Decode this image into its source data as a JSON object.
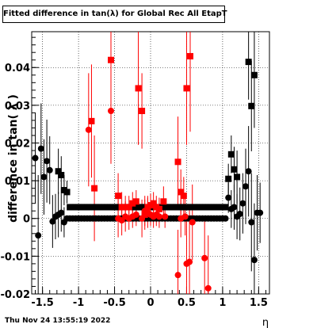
{
  "title": "Fitted difference in tan(λ) for Global Rec All EtapT",
  "footer": "Thu Nov 24 13:55:19 2022",
  "chart_data": {
    "type": "scatter",
    "title": "Fitted difference in tan(λ) for Global Rec All EtapT",
    "xlabel": "η",
    "ylabel": "difference in tan( λ )",
    "xlim": [
      -1.65,
      1.65
    ],
    "ylim": [
      -0.02,
      0.0495
    ],
    "grid": true,
    "x_ticks": [
      -1.5,
      -1,
      -0.5,
      0,
      0.5,
      1,
      1.5
    ],
    "x_tick_labels": [
      "-1.5",
      "-1",
      "-0.5",
      "0",
      "0.5",
      "1",
      "1.5"
    ],
    "y_ticks": [
      -0.02,
      -0.01,
      0,
      0.01,
      0.02,
      0.03,
      0.04
    ],
    "y_tick_labels": [
      "-0.02",
      "-0.01",
      "0",
      "0.01",
      "0.02",
      "0.03",
      "0.04"
    ],
    "series": [
      {
        "marker": "circle",
        "color": "#000000",
        "points": [
          [
            -1.6,
            0.016,
            0.012
          ],
          [
            -1.56,
            -0.0045,
            0.016
          ],
          [
            -1.52,
            0.0185,
            0.012
          ],
          [
            -1.48,
            0.011,
            0.01
          ],
          [
            -1.44,
            0.0152,
            0.011
          ],
          [
            -1.4,
            0.0128,
            0.009
          ],
          [
            -1.36,
            -0.0008,
            0.007
          ],
          [
            -1.32,
            0.0005,
            0.006
          ],
          [
            -1.28,
            0.001,
            0.006
          ],
          [
            -1.24,
            0.0015,
            0.005
          ],
          [
            -1.2,
            -0.001,
            0.004
          ],
          [
            -1.16,
            0.0,
            0.0006
          ],
          [
            -1.12,
            0.0,
            0.0006
          ],
          [
            -1.08,
            0.0,
            0.0006
          ],
          [
            -1.04,
            0.0,
            0.0006
          ],
          [
            -1.0,
            0.0,
            0.0006
          ],
          [
            -0.96,
            0.0,
            0.0006
          ],
          [
            -0.92,
            0.0,
            0.0006
          ],
          [
            -0.88,
            0.0,
            0.0006
          ],
          [
            -0.84,
            0.0,
            0.0006
          ],
          [
            -0.8,
            0.0,
            0.0006
          ],
          [
            -0.76,
            0.0,
            0.0006
          ],
          [
            -0.72,
            0.0,
            0.0006
          ],
          [
            -0.68,
            0.0,
            0.0006
          ],
          [
            -0.64,
            0.0,
            0.0006
          ],
          [
            -0.6,
            0.0,
            0.0006
          ],
          [
            -0.56,
            0.0,
            0.0006
          ],
          [
            -0.52,
            0.0,
            0.0006
          ],
          [
            -0.48,
            0.0,
            0.0006
          ],
          [
            -0.44,
            0.0,
            0.0006
          ],
          [
            -0.4,
            0.0,
            0.0006
          ],
          [
            -0.36,
            0.0,
            0.0006
          ],
          [
            -0.32,
            0.0,
            0.0006
          ],
          [
            -0.28,
            0.0,
            0.0006
          ],
          [
            -0.24,
            0.0,
            0.0006
          ],
          [
            -0.2,
            0.0,
            0.0006
          ],
          [
            -0.16,
            0.0,
            0.0006
          ],
          [
            -0.12,
            0.0,
            0.0006
          ],
          [
            -0.08,
            0.0,
            0.0006
          ],
          [
            -0.04,
            0.0,
            0.0006
          ],
          [
            0.0,
            0.0,
            0.0006
          ],
          [
            0.04,
            0.0,
            0.0006
          ],
          [
            0.08,
            0.0,
            0.0006
          ],
          [
            0.12,
            0.0,
            0.0006
          ],
          [
            0.16,
            0.0,
            0.0006
          ],
          [
            0.2,
            0.0,
            0.0006
          ],
          [
            0.24,
            0.0,
            0.0006
          ],
          [
            0.28,
            0.0,
            0.0006
          ],
          [
            0.32,
            0.0,
            0.0006
          ],
          [
            0.36,
            0.0,
            0.0006
          ],
          [
            0.4,
            0.0,
            0.0006
          ],
          [
            0.44,
            0.0,
            0.0006
          ],
          [
            0.48,
            0.0,
            0.0006
          ],
          [
            0.52,
            0.0,
            0.0006
          ],
          [
            0.56,
            0.0,
            0.0006
          ],
          [
            0.6,
            0.0,
            0.0006
          ],
          [
            0.64,
            0.0,
            0.0006
          ],
          [
            0.68,
            0.0,
            0.0006
          ],
          [
            0.72,
            0.0,
            0.0006
          ],
          [
            0.76,
            0.0,
            0.0006
          ],
          [
            0.8,
            0.0,
            0.0006
          ],
          [
            0.84,
            0.0,
            0.0006
          ],
          [
            0.88,
            0.0,
            0.0006
          ],
          [
            0.92,
            0.0,
            0.0006
          ],
          [
            0.96,
            0.0,
            0.0006
          ],
          [
            1.0,
            0.0,
            0.0006
          ],
          [
            1.04,
            0.0,
            0.0006
          ],
          [
            1.08,
            0.0055,
            0.004
          ],
          [
            1.12,
            0.0025,
            0.005
          ],
          [
            1.16,
            0.003,
            0.006
          ],
          [
            1.2,
            0.0005,
            0.006
          ],
          [
            1.24,
            0.0012,
            0.007
          ],
          [
            1.28,
            0.004,
            0.008
          ],
          [
            1.32,
            0.0085,
            0.01
          ],
          [
            1.36,
            0.0125,
            0.012
          ],
          [
            1.4,
            -0.001,
            0.013
          ],
          [
            1.44,
            -0.011,
            0.015
          ],
          [
            1.48,
            0.0015,
            0.01
          ],
          [
            1.52,
            0.0015,
            0.008
          ]
        ]
      },
      {
        "marker": "square",
        "color": "#000000",
        "points": [
          [
            -1.28,
            0.0125,
            0.006
          ],
          [
            -1.24,
            0.0115,
            0.005
          ],
          [
            -1.2,
            0.0075,
            0.004
          ],
          [
            -1.16,
            0.007,
            0.003
          ],
          [
            -1.12,
            0.003,
            0.0006
          ],
          [
            -1.08,
            0.003,
            0.0006
          ],
          [
            -1.04,
            0.003,
            0.0006
          ],
          [
            -1.0,
            0.003,
            0.0006
          ],
          [
            -0.96,
            0.003,
            0.0006
          ],
          [
            -0.92,
            0.003,
            0.0006
          ],
          [
            -0.88,
            0.003,
            0.0006
          ],
          [
            -0.84,
            0.003,
            0.0006
          ],
          [
            -0.8,
            0.003,
            0.0006
          ],
          [
            -0.76,
            0.003,
            0.0006
          ],
          [
            -0.72,
            0.003,
            0.0006
          ],
          [
            -0.68,
            0.003,
            0.0006
          ],
          [
            -0.64,
            0.003,
            0.0006
          ],
          [
            -0.6,
            0.003,
            0.0006
          ],
          [
            -0.56,
            0.003,
            0.0006
          ],
          [
            -0.52,
            0.003,
            0.0006
          ],
          [
            -0.48,
            0.003,
            0.0006
          ],
          [
            -0.44,
            0.003,
            0.0006
          ],
          [
            -0.4,
            0.003,
            0.0006
          ],
          [
            -0.36,
            0.003,
            0.0006
          ],
          [
            -0.32,
            0.003,
            0.0006
          ],
          [
            -0.28,
            0.003,
            0.0006
          ],
          [
            -0.24,
            0.003,
            0.0006
          ],
          [
            -0.2,
            0.003,
            0.0006
          ],
          [
            -0.16,
            0.003,
            0.0006
          ],
          [
            -0.12,
            0.003,
            0.0006
          ],
          [
            -0.08,
            0.003,
            0.0006
          ],
          [
            -0.04,
            0.003,
            0.0006
          ],
          [
            0.0,
            0.003,
            0.0006
          ],
          [
            0.04,
            0.003,
            0.0006
          ],
          [
            0.08,
            0.003,
            0.0006
          ],
          [
            0.12,
            0.003,
            0.0006
          ],
          [
            0.16,
            0.003,
            0.0006
          ],
          [
            0.2,
            0.003,
            0.0006
          ],
          [
            0.24,
            0.003,
            0.0006
          ],
          [
            0.28,
            0.003,
            0.0006
          ],
          [
            0.32,
            0.003,
            0.0006
          ],
          [
            0.36,
            0.003,
            0.0006
          ],
          [
            0.4,
            0.003,
            0.0006
          ],
          [
            0.44,
            0.003,
            0.0006
          ],
          [
            0.48,
            0.003,
            0.0006
          ],
          [
            0.52,
            0.003,
            0.0006
          ],
          [
            0.56,
            0.003,
            0.0006
          ],
          [
            0.6,
            0.003,
            0.0006
          ],
          [
            0.64,
            0.003,
            0.0006
          ],
          [
            0.68,
            0.003,
            0.0006
          ],
          [
            0.72,
            0.003,
            0.0006
          ],
          [
            0.76,
            0.003,
            0.0006
          ],
          [
            0.8,
            0.003,
            0.0006
          ],
          [
            0.84,
            0.003,
            0.0006
          ],
          [
            0.88,
            0.003,
            0.0006
          ],
          [
            0.92,
            0.003,
            0.0006
          ],
          [
            0.96,
            0.003,
            0.0006
          ],
          [
            1.0,
            0.003,
            0.0006
          ],
          [
            1.04,
            0.003,
            0.0006
          ],
          [
            1.08,
            0.0105,
            0.004
          ],
          [
            1.12,
            0.017,
            0.005
          ],
          [
            1.16,
            0.013,
            0.006
          ],
          [
            1.2,
            0.011,
            0.007
          ],
          [
            1.36,
            0.0415,
            0.01
          ],
          [
            1.4,
            0.0298,
            0.012
          ],
          [
            1.44,
            0.038,
            0.014
          ]
        ]
      },
      {
        "marker": "square",
        "color": "#ff0000",
        "points": [
          [
            -0.82,
            0.0258,
            0.015
          ],
          [
            -0.78,
            0.008,
            0.014
          ],
          [
            -0.55,
            0.042,
            0.016
          ],
          [
            -0.45,
            0.006,
            0.006
          ],
          [
            -0.4,
            0.003,
            0.004
          ],
          [
            -0.35,
            0.003,
            0.003
          ],
          [
            -0.3,
            0.003,
            0.003
          ],
          [
            -0.25,
            0.004,
            0.003
          ],
          [
            -0.2,
            0.0045,
            0.003
          ],
          [
            -0.17,
            0.0345,
            0.015
          ],
          [
            -0.12,
            0.0285,
            0.01
          ],
          [
            -0.08,
            0.001,
            0.004
          ],
          [
            -0.04,
            0.003,
            0.003
          ],
          [
            0.0,
            0.0035,
            0.003
          ],
          [
            0.04,
            0.004,
            0.003
          ],
          [
            0.08,
            0.003,
            0.003
          ],
          [
            0.12,
            0.0025,
            0.003
          ],
          [
            0.18,
            0.0045,
            0.004
          ],
          [
            0.38,
            0.015,
            0.012
          ],
          [
            0.42,
            0.007,
            0.006
          ],
          [
            0.46,
            0.006,
            0.005
          ],
          [
            0.5,
            0.0345,
            0.015
          ],
          [
            0.55,
            0.043,
            0.02
          ]
        ]
      },
      {
        "marker": "circle",
        "color": "#ff0000",
        "points": [
          [
            -0.86,
            0.0235,
            0.015
          ],
          [
            -0.55,
            0.0285,
            0.014
          ],
          [
            -0.45,
            0.0,
            0.005
          ],
          [
            -0.4,
            -0.0005,
            0.004
          ],
          [
            -0.35,
            0.0005,
            0.004
          ],
          [
            -0.3,
            0.0,
            0.003
          ],
          [
            -0.25,
            0.0005,
            0.003
          ],
          [
            -0.2,
            0.001,
            0.003
          ],
          [
            -0.12,
            0.0,
            0.005
          ],
          [
            -0.08,
            0.002,
            0.004
          ],
          [
            -0.04,
            0.0015,
            0.004
          ],
          [
            0.0,
            0.001,
            0.003
          ],
          [
            0.04,
            0.0005,
            0.003
          ],
          [
            0.08,
            0.001,
            0.003
          ],
          [
            0.12,
            0.0005,
            0.003
          ],
          [
            0.2,
            0.0005,
            0.003
          ],
          [
            0.38,
            -0.015,
            0.012
          ],
          [
            0.42,
            0.0,
            0.005
          ],
          [
            0.48,
            0.0005,
            0.005
          ],
          [
            0.5,
            -0.012,
            0.012
          ],
          [
            0.54,
            -0.0115,
            0.014
          ],
          [
            0.58,
            -0.001,
            0.01
          ],
          [
            0.75,
            -0.0105,
            0.011
          ],
          [
            0.8,
            -0.0185,
            0.014
          ]
        ]
      }
    ]
  }
}
